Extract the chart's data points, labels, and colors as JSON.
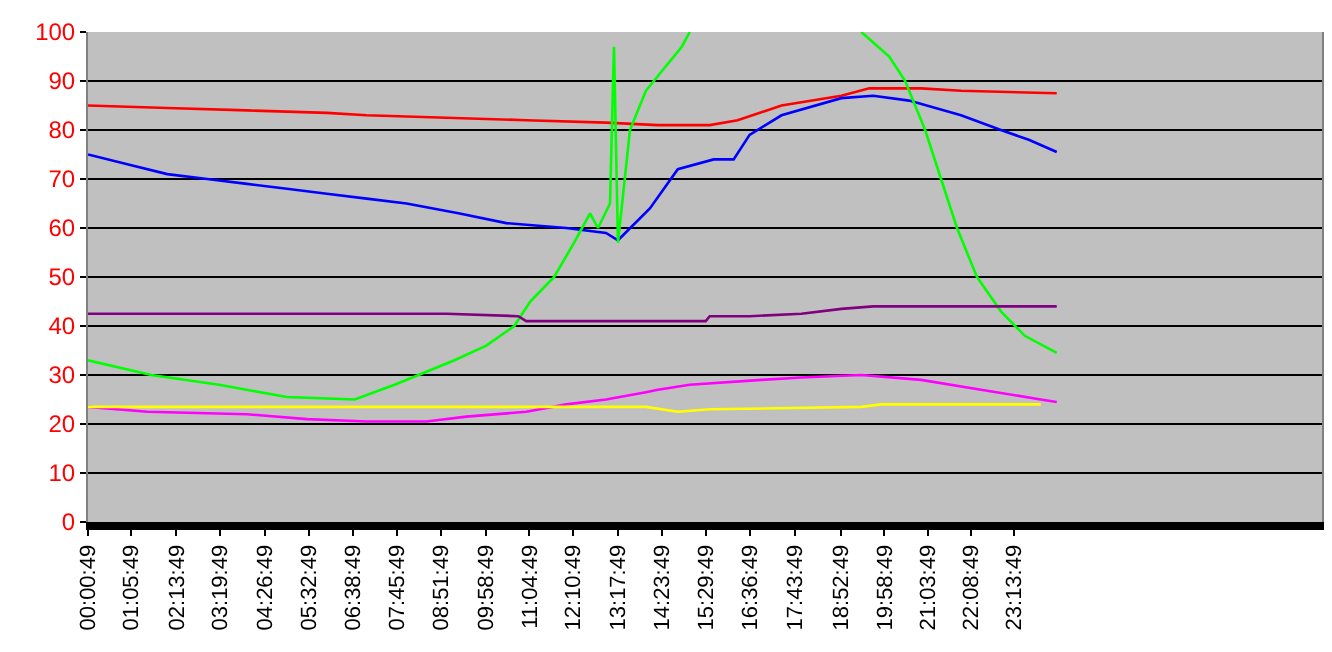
{
  "chart_data": {
    "type": "line",
    "xlim": [
      0.0136,
      30.95
    ],
    "ylim": [
      0,
      100
    ],
    "yticks": [
      0,
      10,
      20,
      30,
      40,
      50,
      60,
      70,
      80,
      90,
      100
    ],
    "xticks": [
      {
        "value": 0.0136,
        "label": "00:00:49"
      },
      {
        "value": 1.0969,
        "label": "01:05:49"
      },
      {
        "value": 2.2303,
        "label": "02:13:49"
      },
      {
        "value": 3.3303,
        "label": "03:19:49"
      },
      {
        "value": 4.4469,
        "label": "04:26:49"
      },
      {
        "value": 5.5469,
        "label": "05:32:49"
      },
      {
        "value": 6.6469,
        "label": "06:38:49"
      },
      {
        "value": 7.7636,
        "label": "07:45:49"
      },
      {
        "value": 8.8636,
        "label": "08:51:49"
      },
      {
        "value": 9.9803,
        "label": "09:58:49"
      },
      {
        "value": 11.0803,
        "label": "11:04:49"
      },
      {
        "value": 12.1803,
        "label": "12:10:49"
      },
      {
        "value": 13.2969,
        "label": "13:17:49"
      },
      {
        "value": 14.3969,
        "label": "14:23:49"
      },
      {
        "value": 15.4969,
        "label": "15:29:49"
      },
      {
        "value": 16.6136,
        "label": "16:36:49"
      },
      {
        "value": 17.7303,
        "label": "17:43:49"
      },
      {
        "value": 18.8803,
        "label": "18:52:49"
      },
      {
        "value": 19.9803,
        "label": "19:58:49"
      },
      {
        "value": 21.0636,
        "label": "21:03:49"
      },
      {
        "value": 22.1469,
        "label": "22:08:49"
      },
      {
        "value": 23.2303,
        "label": "23:13:49"
      }
    ],
    "grid": "y",
    "marker": "none",
    "line_style": "solid",
    "series": [
      {
        "color": "#ff0000",
        "x": [
          0.0136,
          2,
          4,
          6,
          7,
          9,
          11,
          13,
          14.3,
          15.6,
          16.3,
          17.4,
          18.9,
          19.6,
          20.9,
          21.9,
          24.3
        ],
        "values": [
          85,
          84.5,
          84,
          83.5,
          83,
          82.5,
          82,
          81.5,
          81,
          81,
          82,
          85,
          87,
          88.5,
          88.5,
          88,
          87.5
        ]
      },
      {
        "color": "#0000ff",
        "x": [
          0.0136,
          1,
          2,
          3,
          4,
          5,
          6,
          7,
          8,
          9.3,
          10.5,
          12,
          13,
          13.3,
          14.1,
          14.8,
          15.7,
          16.2,
          16.6,
          17.4,
          18.9,
          19.7,
          20.6,
          21.9,
          22.9,
          23.6,
          24.3
        ],
        "values": [
          75,
          73,
          71,
          70,
          69,
          68,
          67,
          66,
          65,
          63,
          61,
          60,
          59,
          57.5,
          64,
          72,
          74,
          74,
          79,
          83,
          86.5,
          87,
          86,
          83,
          80,
          78,
          75.5
        ]
      },
      {
        "color": "#00ff00",
        "x": [
          0.0136,
          1.6,
          3.3,
          5,
          6.7,
          7.7,
          8.3,
          9.2,
          10,
          10.7,
          11.1,
          11.7,
          12.2,
          12.6,
          12.8,
          13.1,
          13.2,
          13.3,
          13.6,
          14,
          14.5,
          14.9,
          15.1,
          19.3,
          19.4,
          20.1,
          20.5,
          21,
          21.4,
          21.8,
          22.3,
          22.9,
          23.5,
          24.3
        ],
        "values": [
          33,
          30,
          28,
          25.5,
          25,
          28,
          30,
          33,
          36,
          40,
          45,
          50,
          57,
          63,
          60,
          65,
          97,
          57,
          80,
          88,
          93,
          97,
          100,
          null,
          100,
          95,
          90,
          80,
          70,
          60,
          50,
          43,
          38,
          34.5
        ]
      },
      {
        "color": "#800080",
        "x": [
          0.0136,
          9,
          10.8,
          11,
          15.5,
          15.6,
          16.6,
          17.9,
          18.9,
          19.7,
          24.3
        ],
        "values": [
          42.5,
          42.5,
          42,
          41,
          41,
          42,
          42,
          42.5,
          43.5,
          44,
          44
        ]
      },
      {
        "color": "#ff00ff",
        "x": [
          0.0136,
          1.5,
          4,
          5.5,
          7,
          8.5,
          9.5,
          11,
          12,
          13,
          14,
          14.3,
          15.1,
          16.9,
          17.9,
          19.4,
          20.9,
          22.4,
          23.9,
          24.3
        ],
        "values": [
          23.5,
          22.5,
          22,
          21,
          20.5,
          20.5,
          21.5,
          22.5,
          24,
          25,
          26.5,
          27,
          28,
          29,
          29.5,
          30,
          29,
          27,
          25,
          24.5
        ]
      },
      {
        "color": "#ffff00",
        "x": [
          0.0136,
          14,
          14.8,
          15.6,
          19.4,
          19.9,
          23.9
        ],
        "values": [
          23.5,
          23.5,
          22.5,
          23,
          23.5,
          24,
          24
        ]
      }
    ]
  }
}
